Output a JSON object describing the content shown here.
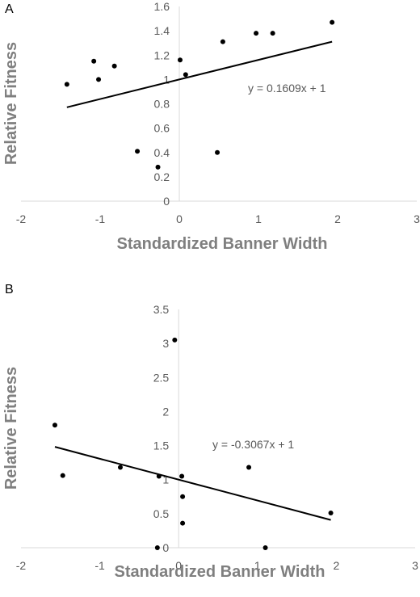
{
  "chart_data": [
    {
      "type": "scatter",
      "panel_label": "A",
      "xlabel": "Standardized Banner Width",
      "ylabel": "Relative Fitness",
      "xlim": [
        -2,
        3
      ],
      "ylim": [
        0,
        1.6
      ],
      "xticks": [
        "-2",
        "-1",
        "0",
        "1",
        "2",
        "3"
      ],
      "yticks": [
        "0",
        "0.2",
        "0.4",
        "0.6",
        "0.8",
        "1",
        "1.2",
        "1.4",
        "1.6"
      ],
      "points": [
        {
          "x": -1.42,
          "y": 0.96
        },
        {
          "x": -1.08,
          "y": 1.15
        },
        {
          "x": -1.02,
          "y": 1.0
        },
        {
          "x": -0.82,
          "y": 1.11
        },
        {
          "x": -0.53,
          "y": 0.41
        },
        {
          "x": -0.27,
          "y": 0.28
        },
        {
          "x": 0.01,
          "y": 1.16
        },
        {
          "x": 0.08,
          "y": 1.04
        },
        {
          "x": 0.48,
          "y": 0.4
        },
        {
          "x": 0.55,
          "y": 1.31
        },
        {
          "x": 0.97,
          "y": 1.38
        },
        {
          "x": 1.18,
          "y": 1.38
        },
        {
          "x": 1.93,
          "y": 1.47
        }
      ],
      "trendline": {
        "equation": "y = 0.1609x + 1",
        "slope": 0.1609,
        "intercept": 1,
        "x_range": [
          -1.42,
          1.93
        ]
      },
      "grid": false
    },
    {
      "type": "scatter",
      "panel_label": "B",
      "xlabel": "Standardized Banner Width",
      "ylabel": "Relative Fitness",
      "xlim": [
        -2,
        3
      ],
      "ylim": [
        0,
        3.5
      ],
      "xticks": [
        "-2",
        "-1",
        "0",
        "1",
        "2",
        "3"
      ],
      "yticks": [
        "0",
        "0.5",
        "1",
        "1.5",
        "2",
        "2.5",
        "3",
        "3.5"
      ],
      "points": [
        {
          "x": -1.57,
          "y": 1.8
        },
        {
          "x": -1.47,
          "y": 1.06
        },
        {
          "x": -0.74,
          "y": 1.18
        },
        {
          "x": -0.27,
          "y": 0.0
        },
        {
          "x": -0.25,
          "y": 1.05
        },
        {
          "x": -0.05,
          "y": 3.05
        },
        {
          "x": 0.04,
          "y": 1.05
        },
        {
          "x": 0.05,
          "y": 0.75
        },
        {
          "x": 0.05,
          "y": 0.36
        },
        {
          "x": 0.89,
          "y": 1.18
        },
        {
          "x": 1.1,
          "y": 0.0
        },
        {
          "x": 1.93,
          "y": 0.51
        }
      ],
      "trendline": {
        "equation": "y = -0.3067x + 1",
        "slope": -0.3067,
        "intercept": 1,
        "x_range": [
          -1.57,
          1.93
        ]
      },
      "grid": false
    }
  ]
}
